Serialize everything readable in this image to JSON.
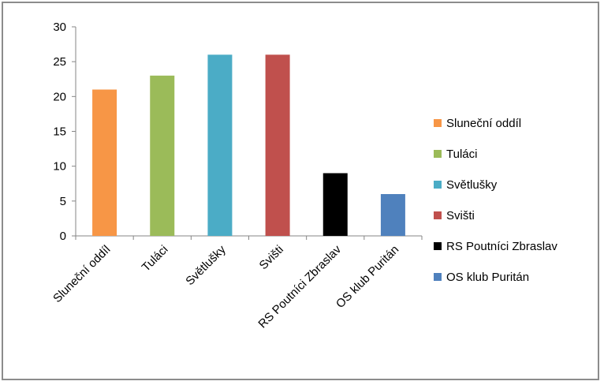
{
  "chart_data": {
    "type": "bar",
    "title": "",
    "xlabel": "",
    "ylabel": "",
    "ylim": [
      0,
      30
    ],
    "yticks": [
      "0",
      "5",
      "10",
      "15",
      "20",
      "25",
      "30"
    ],
    "grid": false,
    "legend_position": "right",
    "categories": [
      "Sluneční oddíl",
      "Tuláci",
      "Světlušky",
      "Svišti",
      "RS Poutníci Zbraslav",
      "OS klub Puritán"
    ],
    "values": [
      21,
      23,
      26,
      26,
      9,
      6
    ],
    "colors": [
      "#f79646",
      "#9bbb59",
      "#4bacc6",
      "#c0504d",
      "#000000",
      "#4f81bd"
    ],
    "legend": [
      {
        "label": "Sluneční oddíl",
        "color": "#f79646"
      },
      {
        "label": "Tuláci",
        "color": "#9bbb59"
      },
      {
        "label": "Světlušky",
        "color": "#4bacc6"
      },
      {
        "label": "Svišti",
        "color": "#c0504d"
      },
      {
        "label": "RS Poutníci Zbraslav",
        "color": "#000000"
      },
      {
        "label": "OS klub Puritán",
        "color": "#4f81bd"
      }
    ]
  }
}
